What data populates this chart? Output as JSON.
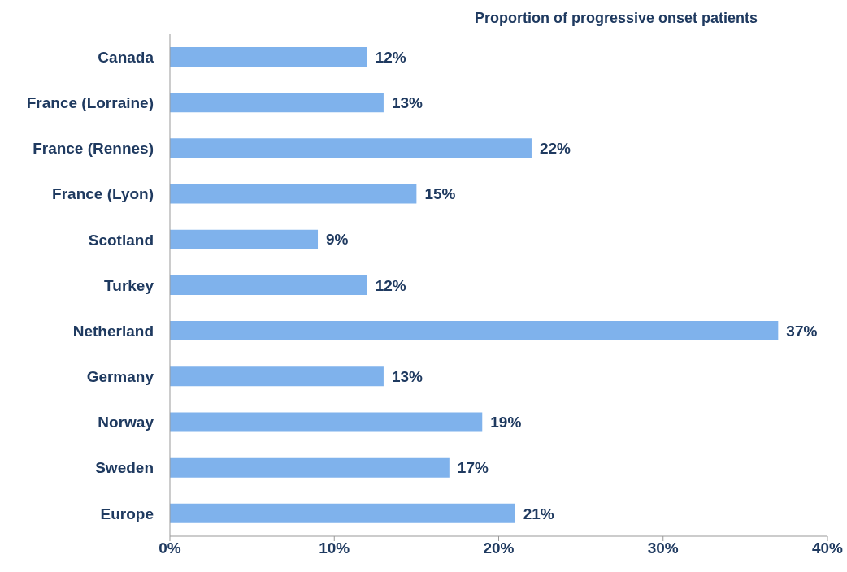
{
  "chart_data": {
    "type": "bar",
    "orientation": "horizontal",
    "title": "Proportion of progressive onset patients",
    "categories": [
      "Canada",
      "France (Lorraine)",
      "France (Rennes)",
      "France (Lyon)",
      "Scotland",
      "Turkey",
      "Netherland",
      "Germany",
      "Norway",
      "Sweden",
      "Europe"
    ],
    "values": [
      12,
      13,
      22,
      15,
      9,
      12,
      37,
      13,
      19,
      17,
      21
    ],
    "value_labels": [
      "12%",
      "13%",
      "22%",
      "15%",
      "9%",
      "12%",
      "37%",
      "13%",
      "19%",
      "17%",
      "21%"
    ],
    "color": "#7fb2ec",
    "xlim": [
      0,
      40
    ],
    "xticks": [
      {
        "value": 0,
        "label": "0%"
      },
      {
        "value": 10,
        "label": "10%"
      },
      {
        "value": 20,
        "label": "20%"
      },
      {
        "value": 30,
        "label": "30%"
      },
      {
        "value": 40,
        "label": "40%"
      }
    ],
    "grid": false,
    "legend": false
  }
}
